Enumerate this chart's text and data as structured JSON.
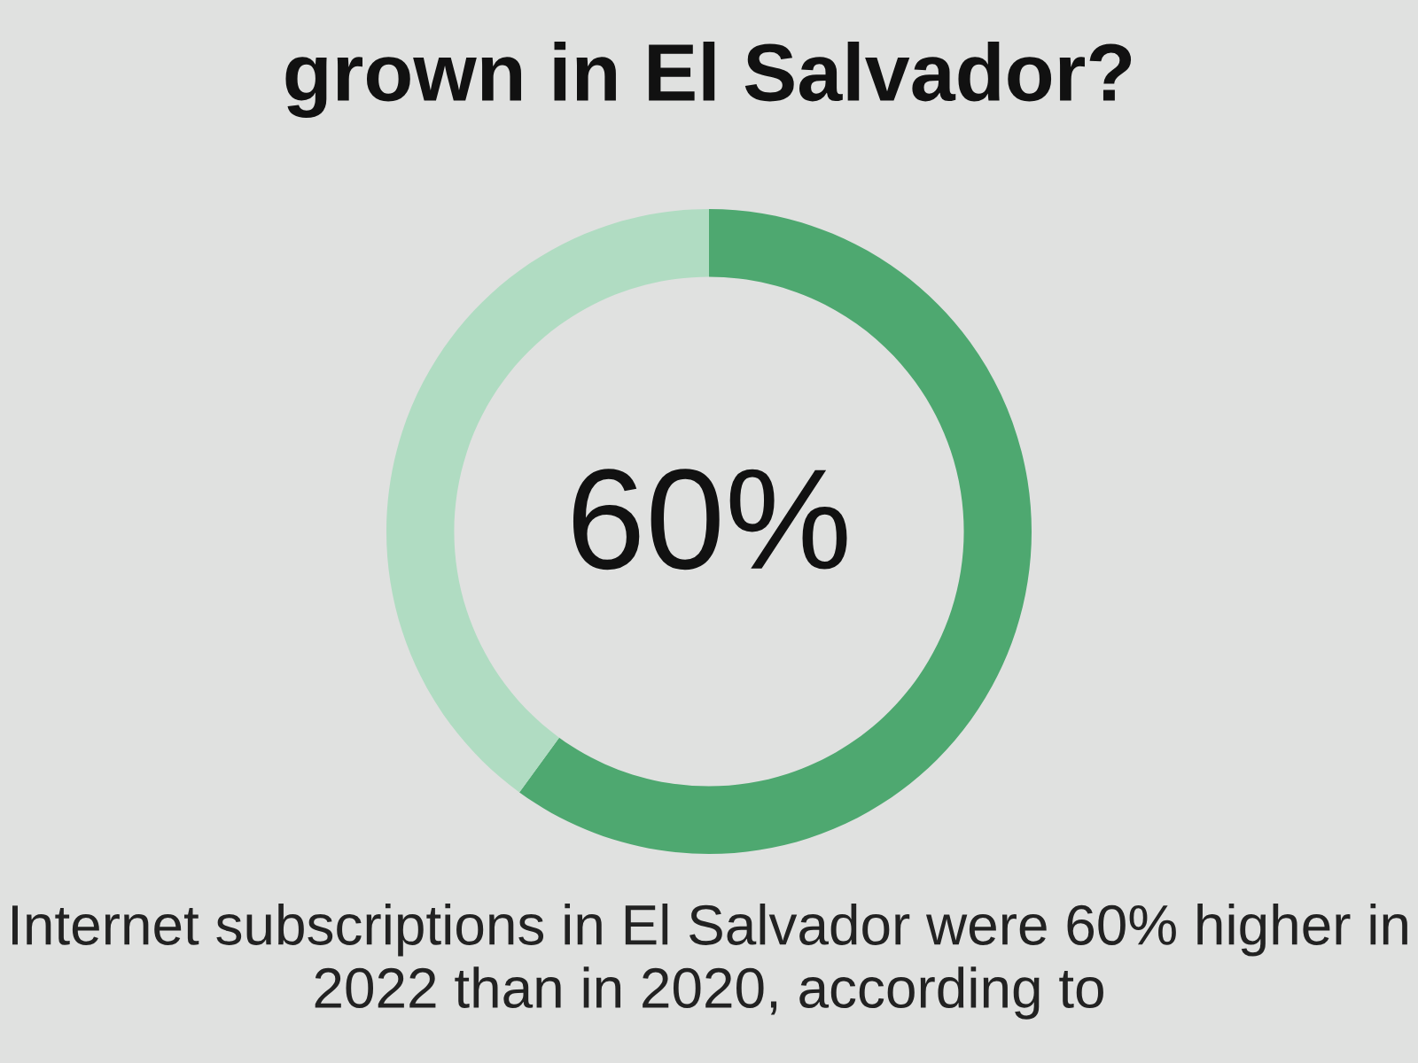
{
  "chart_data": {
    "type": "donut",
    "title": "grown in El Salvador?",
    "categories": [
      null,
      null
    ],
    "values": [
      60,
      40
    ],
    "colors": [
      "#4ea870",
      "#b0dcc2"
    ],
    "annotations": [
      "60%",
      "Internet subscriptions in El Salvador were 60% higher in 2022 than in 2020, according to"
    ]
  }
}
